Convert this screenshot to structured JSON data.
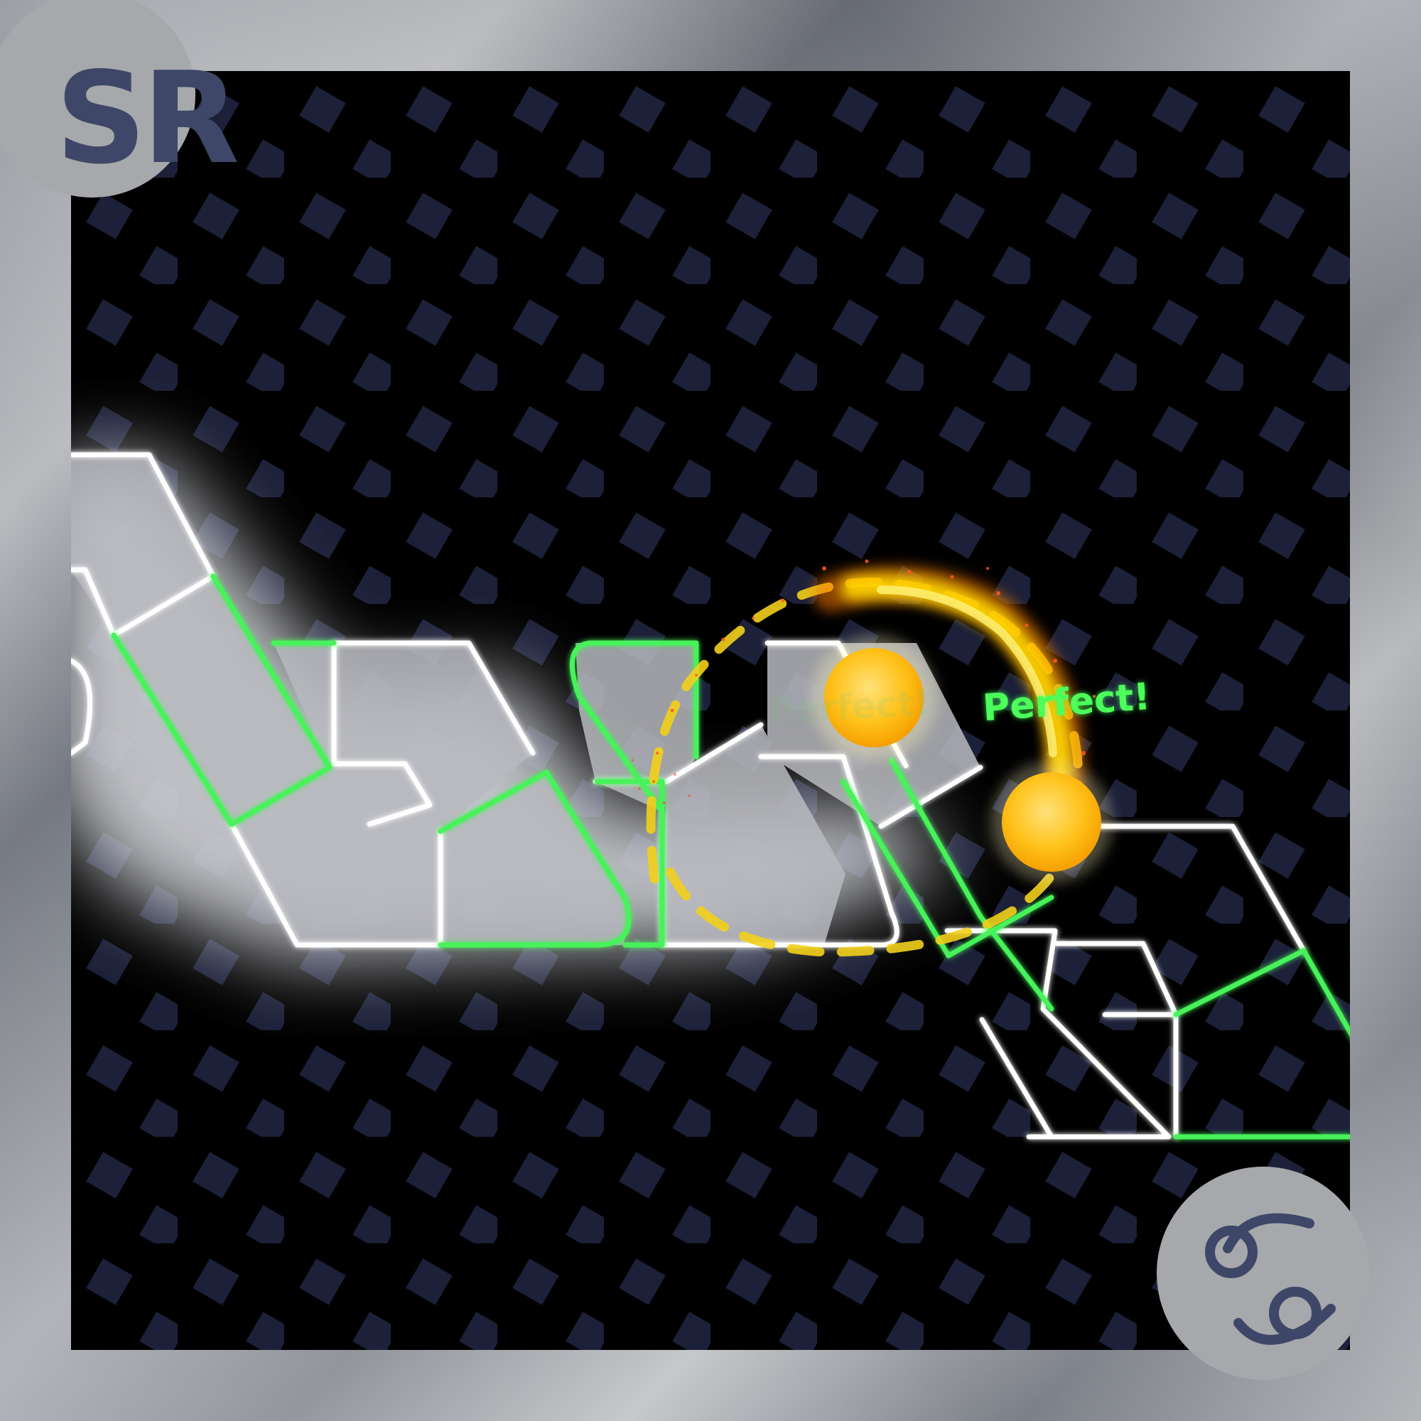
{
  "corner_badges": {
    "top_left_text": "SR",
    "bottom_right_icon": "cancer-zodiac-icon",
    "badge_color": "#a6a8ab",
    "ink_color": "#3e4767"
  },
  "judgement": {
    "text": "Perfect!",
    "faded_text": "Perfect!",
    "color": "#4cff5a"
  },
  "colors": {
    "track_white": "#ffffff",
    "track_green": "#46f25a",
    "planet": "#ffc21a",
    "trail": "#ffd400",
    "background_tiles": "#1c2038"
  }
}
